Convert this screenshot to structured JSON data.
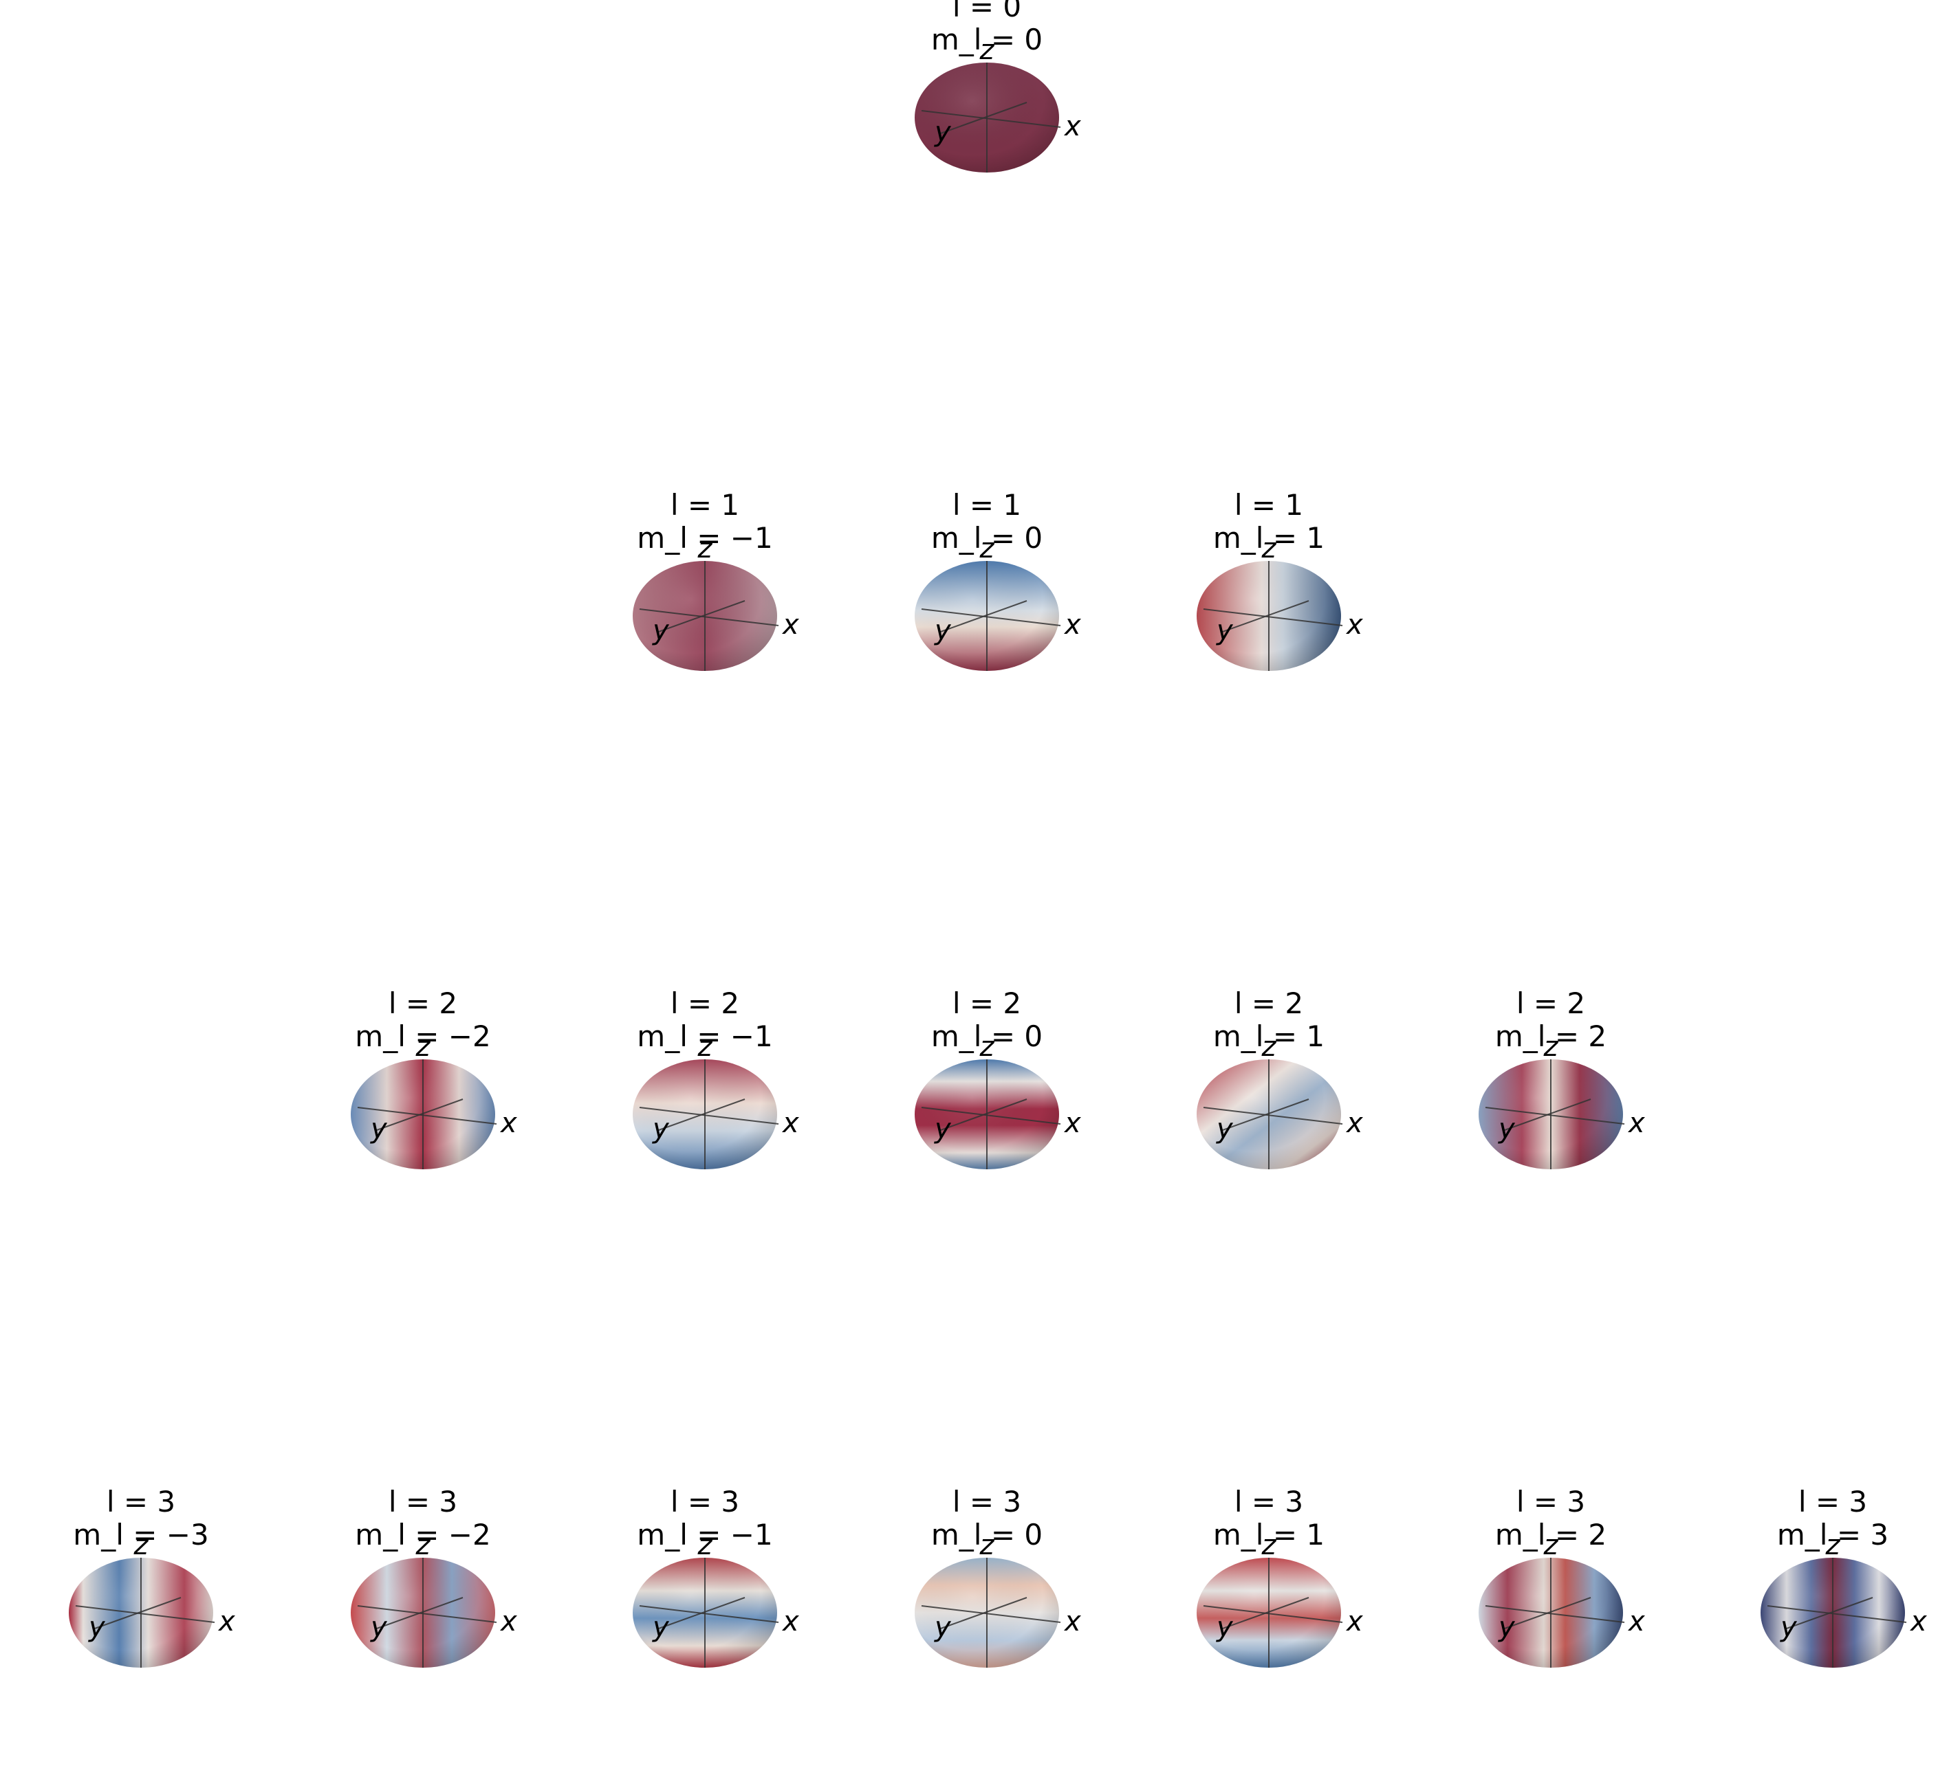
{
  "figure": {
    "rows": [
      {
        "l": 0,
        "panels": [
          {
            "l_label": "l = 0",
            "m_label": "m_l = 0",
            "m": 0,
            "palette": "uniform-red"
          }
        ]
      },
      {
        "l": 1,
        "panels": [
          {
            "l_label": "l = 1",
            "m_label": "m_l = −1",
            "m": -1,
            "palette": "pale-red"
          },
          {
            "l_label": "l = 1",
            "m_label": "m_l = 0",
            "m": 0,
            "palette": "blue-top-red-bottom"
          },
          {
            "l_label": "l = 1",
            "m_label": "m_l = 1",
            "m": 1,
            "palette": "red-left-blue-right"
          }
        ]
      },
      {
        "l": 2,
        "panels": [
          {
            "l_label": "l = 2",
            "m_label": "m_l = −2",
            "m": -2,
            "palette": "blue-sides-red-center"
          },
          {
            "l_label": "l = 2",
            "m_label": "m_l = −1",
            "m": -1,
            "palette": "red-top-blue-bottom"
          },
          {
            "l_label": "l = 2",
            "m_label": "m_l = 0",
            "m": 0,
            "palette": "red-equator"
          },
          {
            "l_label": "l = 2",
            "m_label": "m_l = 1",
            "m": 1,
            "palette": "diagonal"
          },
          {
            "l_label": "l = 2",
            "m_label": "m_l = 2",
            "m": 2,
            "palette": "alternating"
          }
        ]
      },
      {
        "l": 3,
        "panels": [
          {
            "l_label": "l = 3",
            "m_label": "m_l = −3",
            "m": -3,
            "palette": "red-left-blue-mid-red-right"
          },
          {
            "l_label": "l = 3",
            "m_label": "m_l = −2",
            "m": -2,
            "palette": "mixed"
          },
          {
            "l_label": "l = 3",
            "m_label": "m_l = −1",
            "m": -1,
            "palette": "bands"
          },
          {
            "l_label": "l = 3",
            "m_label": "m_l = 0",
            "m": 0,
            "palette": "pale-bands"
          },
          {
            "l_label": "l = 3",
            "m_label": "m_l = 1",
            "m": 1,
            "palette": "bands-2"
          },
          {
            "l_label": "l = 3",
            "m_label": "m_l = 2",
            "m": 2,
            "palette": "quadrants"
          },
          {
            "l_label": "l = 3",
            "m_label": "m_l = 3",
            "m": 3,
            "palette": "dark-sectors"
          }
        ]
      }
    ],
    "axis_labels": {
      "x": "x",
      "y": "y",
      "z": "z"
    },
    "colors": {
      "red": "#8e3548",
      "blue": "#5b7fb0",
      "white": "#ece8e4",
      "axis": "#333333"
    }
  }
}
